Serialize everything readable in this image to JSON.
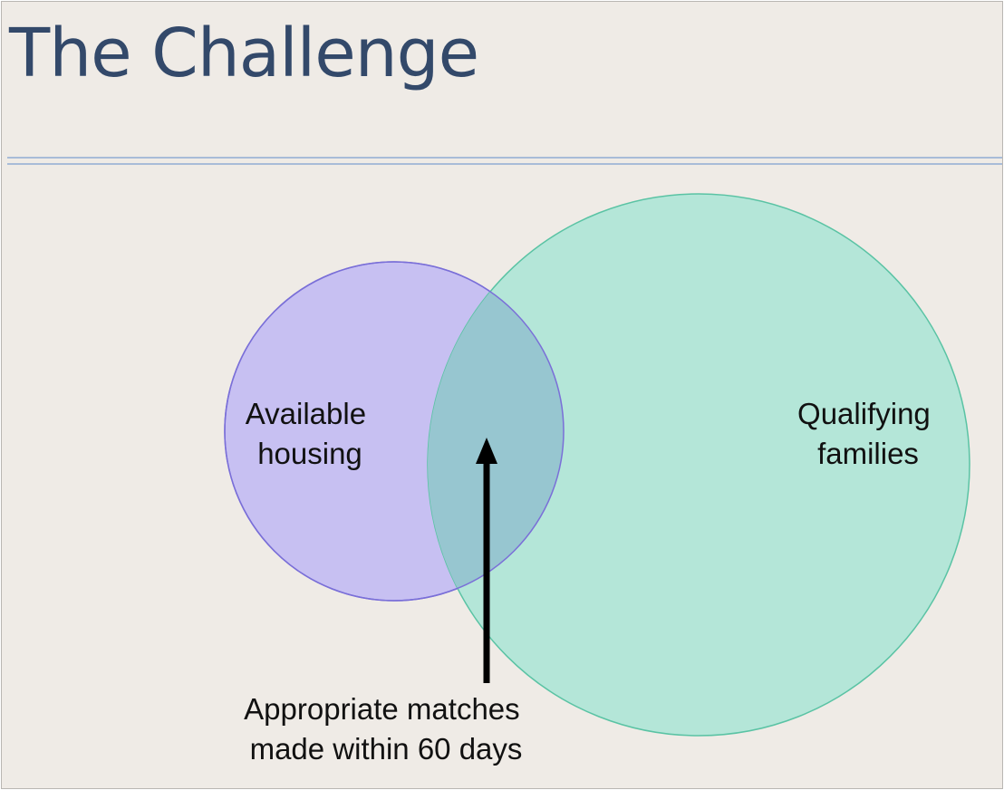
{
  "slide": {
    "title": "The Challenge"
  },
  "diagram": {
    "type": "venn",
    "sets": [
      {
        "key": "housing",
        "label_lines": [
          "Available",
          "housing"
        ],
        "fill": "#c7c0f2",
        "stroke": "#7a6fd8"
      },
      {
        "key": "families",
        "label_lines": [
          "Qualifying",
          "families"
        ],
        "fill": "#b4e6d8",
        "stroke": "#5ac3a4"
      }
    ],
    "overlap_fill": "#97c6d0",
    "callout": {
      "label_lines": [
        "Appropriate matches",
        "made within 60 days"
      ],
      "arrow_color": "#000000"
    }
  },
  "colors": {
    "background": "#efebe6",
    "title": "#33496a",
    "rule": "#a8bcd8"
  }
}
